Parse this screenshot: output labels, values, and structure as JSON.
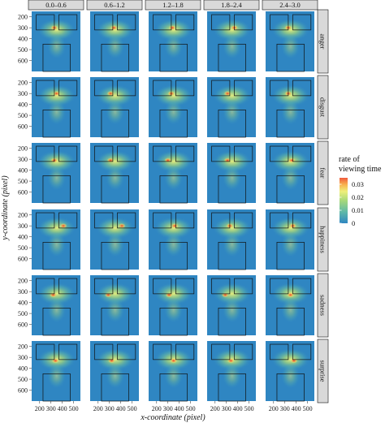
{
  "chart_data": {
    "type": "heatmap",
    "title": "",
    "xlabel": "x-coordinate (pixel)",
    "ylabel": "y-coordinate (pixel)",
    "column_facets": [
      "0.0–0.6",
      "0.6–1.2",
      "1.2–1.8",
      "1.8–2.4",
      "2.4–3.0"
    ],
    "row_facets": [
      "anger",
      "disgust",
      "fear",
      "happiness",
      "sadness",
      "surprise"
    ],
    "x_ticks": [
      "200",
      "300",
      "400",
      "500"
    ],
    "y_ticks": [
      "200",
      "300",
      "400",
      "500",
      "600"
    ],
    "xlim": [
      130,
      560
    ],
    "ylim": [
      150,
      700
    ],
    "legend": {
      "title_lines": [
        "rate of",
        "viewing time"
      ],
      "labels": [
        "0.03",
        "0.02",
        "0.01",
        "0"
      ],
      "range": [
        0,
        0.035
      ],
      "colors": [
        "#2f86c2",
        "#5fb9a8",
        "#a7d87a",
        "#eef07a",
        "#f8b24f",
        "#ef5a3c"
      ],
      "placement": "right"
    },
    "hotspot_x": [
      [
        330,
        340,
        340,
        370,
        330
      ],
      [
        350,
        310,
        330,
        310,
        330
      ],
      [
        330,
        310,
        300,
        310,
        360
      ],
      [
        410,
        410,
        360,
        330,
        370
      ],
      [
        320,
        290,
        310,
        290,
        350
      ],
      [
        340,
        320,
        350,
        340,
        380
      ]
    ],
    "hotspot_y": [
      300,
      300,
      310,
      300,
      330,
      330
    ],
    "aoi_regions": [
      {
        "label": "left eye",
        "x": [
          170,
          330
        ],
        "y": [
          180,
          320
        ]
      },
      {
        "label": "right eye",
        "x": [
          370,
          530
        ],
        "y": [
          180,
          320
        ]
      },
      {
        "label": "mouth",
        "x": [
          230,
          470
        ],
        "y": [
          450,
          700
        ]
      }
    ]
  }
}
